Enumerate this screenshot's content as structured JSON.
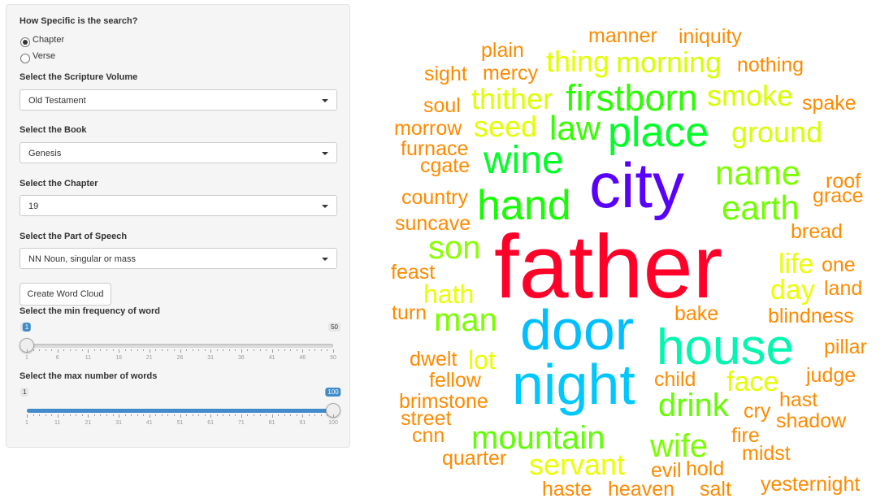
{
  "sidebar": {
    "specificity": {
      "label": "How Specific is the search?",
      "options": [
        {
          "label": "Chapter",
          "selected": true
        },
        {
          "label": "Verse",
          "selected": false
        }
      ]
    },
    "volume": {
      "label": "Select the Scripture Volume",
      "value": "Old Testament"
    },
    "book": {
      "label": "Select the Book",
      "value": "Genesis"
    },
    "chapter": {
      "label": "Select the Chapter",
      "value": "19"
    },
    "pos": {
      "label": "Select the Part of Speech",
      "value": "NN Noun, singular or mass"
    },
    "create_button": "Create Word Cloud",
    "min_freq": {
      "label": "Select the min frequency of word",
      "min": 1,
      "max": 50,
      "value": 1,
      "ticks": [
        "1",
        "6",
        "11",
        "16",
        "21",
        "26",
        "31",
        "36",
        "41",
        "46",
        "50"
      ]
    },
    "max_words": {
      "label": "Select the max number of words",
      "min": 1,
      "max": 100,
      "value": 100,
      "ticks": [
        "1",
        "11",
        "21",
        "31",
        "41",
        "51",
        "61",
        "71",
        "81",
        "91",
        "100"
      ]
    }
  },
  "colors": {
    "accent": "#428bca"
  },
  "wordcloud": [
    {
      "text": "father",
      "color": "#ff0029"
    },
    {
      "text": "city",
      "color": "#5a00ff"
    },
    {
      "text": "door",
      "color": "#00bfff"
    },
    {
      "text": "night",
      "color": "#00c8ff"
    },
    {
      "text": "house",
      "color": "#00f7b0"
    },
    {
      "text": "place",
      "color": "#00ff26"
    },
    {
      "text": "hand",
      "color": "#16ff00"
    },
    {
      "text": "wine",
      "color": "#00ff26"
    },
    {
      "text": "firstborn",
      "color": "#2aff00"
    },
    {
      "text": "law",
      "color": "#36ff00"
    },
    {
      "text": "name",
      "color": "#7aff00"
    },
    {
      "text": "earth",
      "color": "#70ff00"
    },
    {
      "text": "mountain",
      "color": "#5eff00"
    },
    {
      "text": "drink",
      "color": "#62ff00"
    },
    {
      "text": "wife",
      "color": "#7aff00"
    },
    {
      "text": "man",
      "color": "#7aff00"
    },
    {
      "text": "son",
      "color": "#8aff00"
    },
    {
      "text": "smoke",
      "color": "#d8ff00"
    },
    {
      "text": "morning",
      "color": "#d8ff00"
    },
    {
      "text": "thither",
      "color": "#dfff00"
    },
    {
      "text": "thing",
      "color": "#e4ff00"
    },
    {
      "text": "ground",
      "color": "#d8ff00"
    },
    {
      "text": "seed",
      "color": "#e4ff00"
    },
    {
      "text": "servant",
      "color": "#eaff00"
    },
    {
      "text": "face",
      "color": "#e4ff00"
    },
    {
      "text": "day",
      "color": "#ecff00"
    },
    {
      "text": "life",
      "color": "#eaff00"
    },
    {
      "text": "hath",
      "color": "#eaff00"
    },
    {
      "text": "lot",
      "color": "#eaff00"
    },
    {
      "text": "manner",
      "color": "#ff8a00"
    },
    {
      "text": "iniquity",
      "color": "#ff8a00"
    },
    {
      "text": "nothing",
      "color": "#ff8a00"
    },
    {
      "text": "plain",
      "color": "#ff8a00"
    },
    {
      "text": "mercy",
      "color": "#ff8a00"
    },
    {
      "text": "sight",
      "color": "#ff8a00"
    },
    {
      "text": "soul",
      "color": "#ff8a00"
    },
    {
      "text": "spake",
      "color": "#ff8a00"
    },
    {
      "text": "morrow",
      "color": "#ff8a00"
    },
    {
      "text": "furnace",
      "color": "#ff8a00"
    },
    {
      "text": "cgate",
      "color": "#ff8a00"
    },
    {
      "text": "roof",
      "color": "#ff8a00"
    },
    {
      "text": "grace",
      "color": "#ff8a00"
    },
    {
      "text": "country",
      "color": "#ff8a00"
    },
    {
      "text": "suncave",
      "color": "#ff8a00"
    },
    {
      "text": "bread",
      "color": "#ff8a00"
    },
    {
      "text": "feast",
      "color": "#ff8a00"
    },
    {
      "text": "one",
      "color": "#ff8a00"
    },
    {
      "text": "land",
      "color": "#ff8a00"
    },
    {
      "text": "turn",
      "color": "#ff8a00"
    },
    {
      "text": "bake",
      "color": "#ff8a00"
    },
    {
      "text": "blindness",
      "color": "#ff8a00"
    },
    {
      "text": "pillar",
      "color": "#ff8a00"
    },
    {
      "text": "dwelt",
      "color": "#ff8a00"
    },
    {
      "text": "fellow",
      "color": "#ff8a00"
    },
    {
      "text": "child",
      "color": "#ff8a00"
    },
    {
      "text": "judge",
      "color": "#ff8a00"
    },
    {
      "text": "brimstone",
      "color": "#ff8a00"
    },
    {
      "text": "hast",
      "color": "#ff8a00"
    },
    {
      "text": "street",
      "color": "#ff8a00"
    },
    {
      "text": "cry",
      "color": "#ff8a00"
    },
    {
      "text": "shadow",
      "color": "#ff8a00"
    },
    {
      "text": "cnn",
      "color": "#ff8a00"
    },
    {
      "text": "fire",
      "color": "#ff8a00"
    },
    {
      "text": "quarter",
      "color": "#ff8a00"
    },
    {
      "text": "midst",
      "color": "#ff8a00"
    },
    {
      "text": "evil",
      "color": "#ff8a00"
    },
    {
      "text": "hold",
      "color": "#ff8a00"
    },
    {
      "text": "haste",
      "color": "#ff8a00"
    },
    {
      "text": "heaven",
      "color": "#ff8a00"
    },
    {
      "text": "salt",
      "color": "#ff8a00"
    },
    {
      "text": "yesternight",
      "color": "#ff8a00"
    }
  ]
}
